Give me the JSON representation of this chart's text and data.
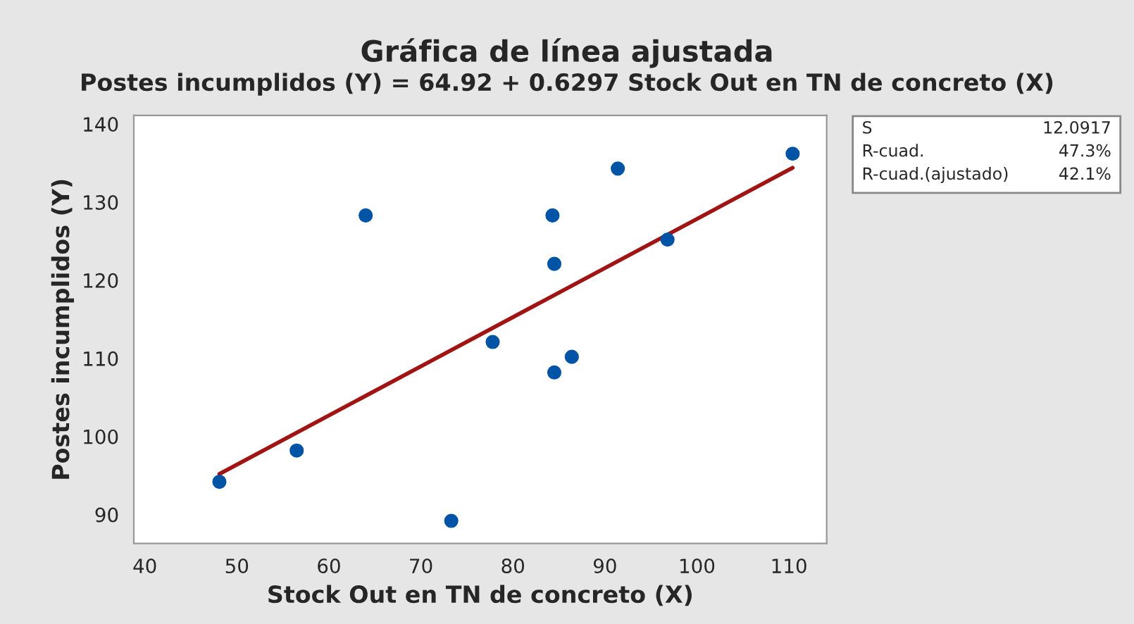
{
  "chart_data": {
    "type": "scatter",
    "title": "Gráfica de línea ajustada",
    "subtitle": "Postes incumplidos (Y) = 64.92 + 0.6297 Stock Out en TN de concreto (X)",
    "xlabel": "Stock Out en TN de concreto (X)",
    "ylabel": "Postes incumplidos (Y)",
    "xlim": [
      38.8,
      114.1
    ],
    "ylim": [
      86.3,
      141.1
    ],
    "xticks": [
      40,
      50,
      60,
      70,
      80,
      90,
      100,
      110
    ],
    "yticks": [
      90,
      100,
      110,
      120,
      130,
      140
    ],
    "grid": false,
    "legend": false,
    "marker": "circle",
    "series": [
      {
        "color": "#0054a6",
        "x": [
          48.1,
          56.5,
          64.0,
          73.3,
          77.8,
          84.3,
          84.5,
          84.5,
          86.4,
          91.4,
          96.8,
          110.4
        ],
        "values": [
          94.2,
          98.2,
          128.3,
          89.2,
          112.1,
          128.3,
          122.1,
          108.2,
          110.2,
          134.3,
          125.2,
          136.2
        ]
      },
      {
        "type": "line",
        "color": "#a01414",
        "line_style": "solid",
        "marker": "none",
        "x": [
          48.1,
          110.4
        ],
        "values": [
          95.2,
          134.4
        ]
      }
    ],
    "annotations": [
      "S",
      "12.0917",
      "R-cuad.",
      "47.3%",
      "R-cuad.(ajustado)",
      "42.1%"
    ]
  }
}
